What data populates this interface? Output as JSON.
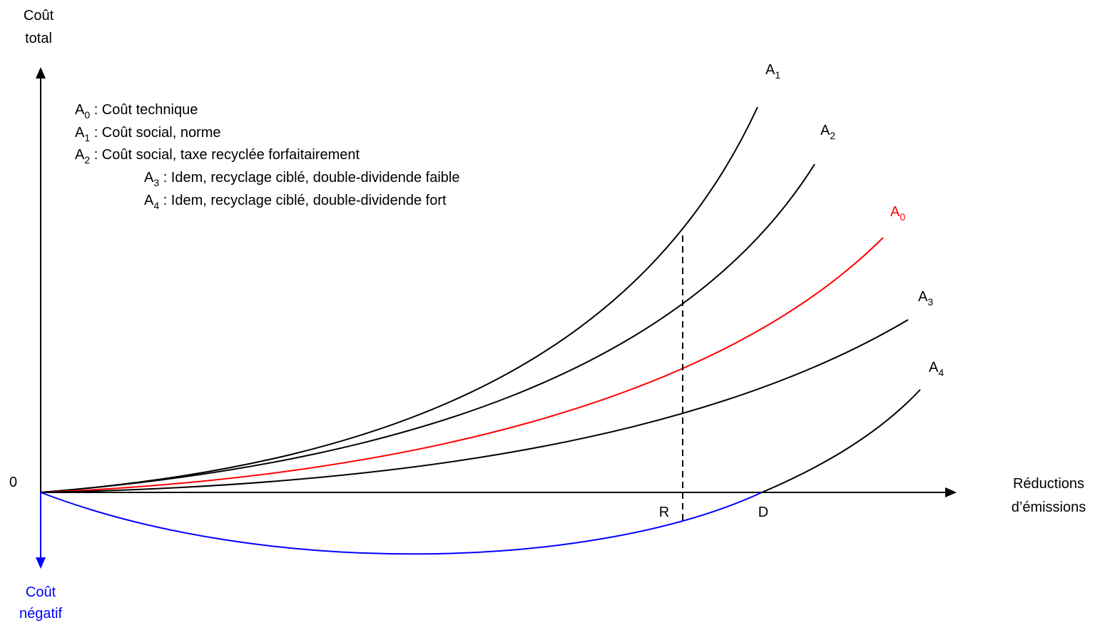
{
  "axes": {
    "y_label_line1": "Coût",
    "y_label_line2": "total",
    "x_label_line1": "Réductions",
    "x_label_line2": "d’émissions",
    "origin_label": "0",
    "neg_label_line1": "Coût",
    "neg_label_line2": "négatif",
    "marker_r": "R",
    "marker_d": "D"
  },
  "legend": [
    {
      "letter": "A",
      "sub": "0",
      "text": " : Coût technique"
    },
    {
      "letter": "A",
      "sub": "1",
      "text": " : Coût social, norme"
    },
    {
      "letter": "A",
      "sub": "2",
      "text": " : Coût social, taxe recyclée forfaitairement"
    },
    {
      "letter": "A",
      "sub": "3",
      "text": " : Idem, recyclage ciblé, double-dividende faible"
    },
    {
      "letter": "A",
      "sub": "4",
      "text": " : Idem, recyclage ciblé, double-dividende fort"
    }
  ],
  "curves": [
    {
      "letter": "A",
      "sub": "1",
      "color": "#000000"
    },
    {
      "letter": "A",
      "sub": "2",
      "color": "#000000"
    },
    {
      "letter": "A",
      "sub": "0",
      "color": "#ff0000"
    },
    {
      "letter": "A",
      "sub": "3",
      "color": "#000000"
    },
    {
      "letter": "A",
      "sub": "4",
      "color": "#000000"
    }
  ],
  "colors": {
    "negative_cost": "#0000ff",
    "technical_cost": "#ff0000",
    "social_cost": "#000000"
  }
}
